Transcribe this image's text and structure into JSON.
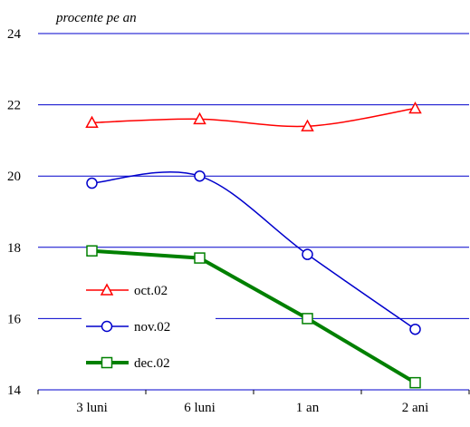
{
  "chart_data": {
    "type": "line",
    "title": "",
    "ylabel": "procente pe an",
    "xlabel": "",
    "categories": [
      "3 luni",
      "6 luni",
      "1 an",
      "2 ani"
    ],
    "ylim": [
      14,
      24
    ],
    "yticks": [
      "14",
      "16",
      "18",
      "20",
      "22",
      "24"
    ],
    "grid": true,
    "legend_position": "bottom-left",
    "series": [
      {
        "name": "oct.02",
        "values": [
          21.5,
          21.6,
          21.4,
          21.9
        ],
        "color": "#ff0000",
        "marker": "triangle",
        "smooth": true
      },
      {
        "name": "nov.02",
        "values": [
          19.8,
          20.0,
          17.8,
          15.7
        ],
        "color": "#0000cc",
        "marker": "circle",
        "smooth": true
      },
      {
        "name": "dec.02",
        "values": [
          17.9,
          17.7,
          16.0,
          14.2
        ],
        "color": "#008000",
        "marker": "square",
        "smooth": false
      }
    ]
  }
}
